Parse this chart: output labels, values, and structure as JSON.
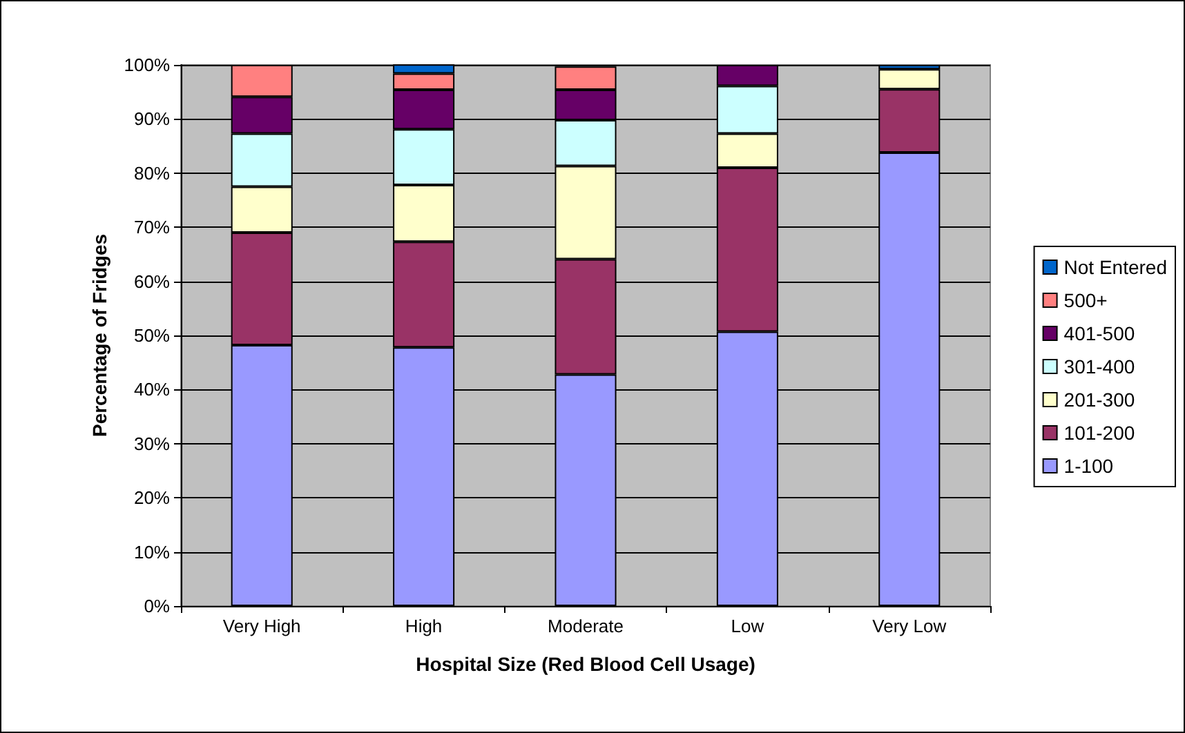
{
  "chart_data": {
    "type": "bar",
    "stacked": true,
    "xlabel": "Hospital Size (Red Blood Cell Usage)",
    "ylabel": "Percentage of Fridges",
    "categories": [
      "Very High",
      "High",
      "Moderate",
      "Low",
      "Very Low"
    ],
    "series": [
      {
        "name": "1-100",
        "color": "#9999ff",
        "values": [
          48.2,
          47.8,
          42.8,
          50.7,
          83.8
        ]
      },
      {
        "name": "101-200",
        "color": "#993366",
        "values": [
          20.8,
          19.5,
          21.3,
          30.3,
          11.7
        ]
      },
      {
        "name": "201-300",
        "color": "#ffffcc",
        "values": [
          8.5,
          10.5,
          17.2,
          6.3,
          3.7
        ]
      },
      {
        "name": "301-400",
        "color": "#ccffff",
        "values": [
          9.8,
          10.3,
          8.5,
          8.8,
          0
        ]
      },
      {
        "name": "401-500",
        "color": "#660066",
        "values": [
          6.8,
          7.3,
          5.6,
          3.9,
          0
        ]
      },
      {
        "name": "500+",
        "color": "#ff8080",
        "values": [
          5.9,
          3.0,
          4.3,
          0,
          0
        ]
      },
      {
        "name": "Not Entered",
        "color": "#0066cc",
        "values": [
          0,
          1.7,
          null,
          0,
          0.8
        ]
      }
    ],
    "ylim": [
      0,
      100
    ],
    "yticks": [
      {
        "value": 0,
        "label": "0%"
      },
      {
        "value": 10,
        "label": "10%"
      },
      {
        "value": 20,
        "label": "20%"
      },
      {
        "value": 30,
        "label": "30%"
      },
      {
        "value": 40,
        "label": "40%"
      },
      {
        "value": 50,
        "label": "50%"
      },
      {
        "value": 60,
        "label": "60%"
      },
      {
        "value": 70,
        "label": "70%"
      },
      {
        "value": 80,
        "label": "80%"
      },
      {
        "value": 90,
        "label": "90%"
      },
      {
        "value": 100,
        "label": "100%"
      }
    ],
    "grid": "y",
    "legend": "right"
  }
}
